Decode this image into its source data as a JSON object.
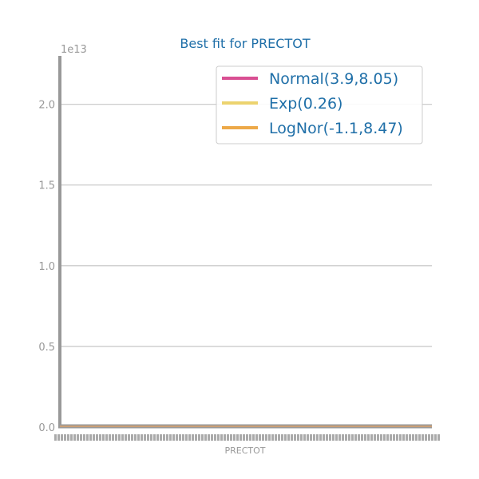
{
  "chart_data": {
    "type": "line",
    "title": "Best fit for PRECTOT",
    "xlabel": "PRECTOT",
    "ylabel": "",
    "y_offset_label": "1e13",
    "ylim": [
      0,
      23000000000000.0
    ],
    "y_ticks": [
      {
        "value": 0.0,
        "label": "0.0"
      },
      {
        "value": 5000000000000.0,
        "label": "0.5"
      },
      {
        "value": 10000000000000.0,
        "label": "1.0"
      },
      {
        "value": 15000000000000.0,
        "label": "1.5"
      },
      {
        "value": 20000000000000.0,
        "label": "2.0"
      }
    ],
    "grid": "horizontal",
    "legend_placement": "top-right",
    "series": [
      {
        "name": "Normal(3.9,8.05)",
        "color": "#d94f93",
        "values": [
          0,
          0
        ]
      },
      {
        "name": "Exp(0.26)",
        "color": "#ecd36f",
        "values": [
          0,
          0
        ]
      },
      {
        "name": "LogNor(-1.1,8.47)",
        "color": "#eda948",
        "values": [
          0,
          0
        ]
      }
    ],
    "x_tick_labels_overlapping": "illegible dense tick labels along the x-axis"
  }
}
